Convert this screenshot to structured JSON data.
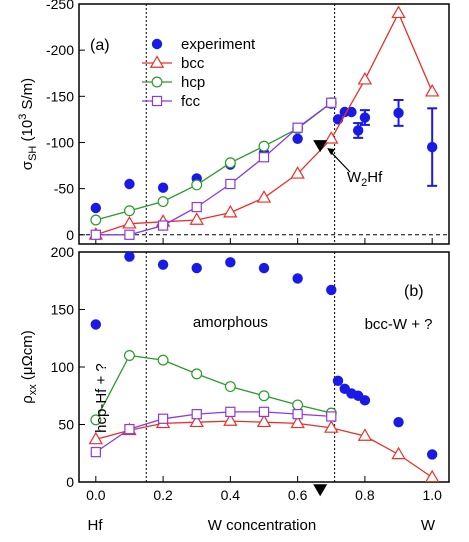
{
  "chart_data": [
    {
      "type": "line",
      "panel_label": "(a)",
      "ylabel": "σSH (10³ S/m)",
      "ylabel_main": "σ",
      "ylabel_sub": "SH",
      "ylabel_unit": " (10",
      "ylabel_exp": "3",
      "ylabel_tail": " S/m)",
      "ylim": [
        -250,
        10
      ],
      "y_inverted": true,
      "yticks": [
        0,
        -50,
        -100,
        -150,
        -200,
        -250
      ],
      "ytick_labels": [
        "0",
        "-50",
        "-100",
        "-150",
        "-200",
        "-250"
      ],
      "xlim": [
        -0.05,
        1.05
      ],
      "legend_position": "top-left",
      "legend": [
        "experiment",
        "bcc",
        "hcp",
        "fcc"
      ],
      "series": [
        {
          "name": "experiment",
          "marker": "filled-circle",
          "line": false,
          "color": "#1a1ae6",
          "x": [
            0.0,
            0.1,
            0.2,
            0.3,
            0.4,
            0.5,
            0.6,
            0.7,
            0.72,
            0.74,
            0.76,
            0.78,
            0.8,
            0.9,
            1.0
          ],
          "y": [
            -29,
            -55,
            -51,
            -61,
            -76,
            -89,
            -104,
            -142,
            -125,
            -133,
            -133,
            -113,
            -127,
            -132,
            -95
          ],
          "err": [
            0,
            0,
            0,
            0,
            0,
            0,
            0,
            0,
            0,
            0,
            0,
            8,
            8,
            14,
            42
          ]
        },
        {
          "name": "bcc",
          "marker": "open-triangle",
          "line": true,
          "color": "#e8302a",
          "x": [
            0.0,
            0.1,
            0.2,
            0.3,
            0.4,
            0.5,
            0.6,
            0.7,
            0.8,
            0.9,
            1.0
          ],
          "y": [
            0,
            -12,
            -14,
            -16,
            -24,
            -40,
            -66,
            -104,
            -168,
            -240,
            -155
          ]
        },
        {
          "name": "hcp",
          "marker": "open-circle",
          "line": true,
          "color": "#2a9a2a",
          "x": [
            0.0,
            0.1,
            0.2,
            0.3,
            0.4,
            0.5,
            0.6,
            0.7
          ],
          "y": [
            -16,
            -26,
            -36,
            -54,
            -78,
            -96,
            -115,
            -143
          ]
        },
        {
          "name": "fcc",
          "marker": "open-square",
          "line": true,
          "color": "#8a3ae0",
          "x": [
            0.0,
            0.1,
            0.2,
            0.3,
            0.4,
            0.5,
            0.6,
            0.7
          ],
          "y": [
            0,
            0,
            -10,
            -30,
            -55,
            -84,
            -116,
            -143
          ]
        }
      ],
      "annotations": [
        {
          "text": "W",
          "sub": "2",
          "tail": "Hf",
          "x": 0.667,
          "y": -96,
          "marker": "filled-down-triangle"
        }
      ],
      "vlines": [
        0.15,
        0.71
      ],
      "hline_dashed": 0
    },
    {
      "type": "line",
      "panel_label": "(b)",
      "ylabel": "ρxx (μΩcm)",
      "ylabel_main": "ρ",
      "ylabel_sub": "xx",
      "ylabel_unit": " (μΩcm)",
      "ylim": [
        0,
        200
      ],
      "yticks": [
        0,
        50,
        100,
        150,
        200
      ],
      "ytick_labels": [
        "0",
        "50",
        "100",
        "150",
        "200"
      ],
      "xlim": [
        -0.05,
        1.05
      ],
      "xticks": [
        0,
        0.2,
        0.4,
        0.6,
        0.8,
        1.0
      ],
      "xtick_labels": [
        "0.0",
        "0.2",
        "0.4",
        "0.6",
        "0.8",
        "1.0"
      ],
      "xlabel": "W concentration",
      "x_left_label": "Hf",
      "x_right_label": "W",
      "series": [
        {
          "name": "experiment",
          "marker": "filled-circle",
          "line": false,
          "color": "#1a1ae6",
          "x": [
            0.0,
            0.1,
            0.2,
            0.3,
            0.4,
            0.5,
            0.6,
            0.7,
            0.72,
            0.74,
            0.76,
            0.78,
            0.8,
            0.9,
            1.0
          ],
          "y": [
            137,
            196,
            189,
            186,
            191,
            186,
            177,
            167,
            88,
            81,
            77,
            75,
            71,
            52,
            24
          ]
        },
        {
          "name": "bcc",
          "marker": "open-triangle",
          "line": true,
          "color": "#e8302a",
          "x": [
            0.0,
            0.1,
            0.2,
            0.3,
            0.4,
            0.5,
            0.6,
            0.7,
            0.8,
            0.9,
            1.0
          ],
          "y": [
            37,
            45,
            51,
            52,
            53,
            52,
            51,
            47,
            40,
            24,
            4
          ]
        },
        {
          "name": "hcp",
          "marker": "open-circle",
          "line": true,
          "color": "#2a9a2a",
          "x": [
            0.0,
            0.1,
            0.2,
            0.3,
            0.4,
            0.5,
            0.6,
            0.7
          ],
          "y": [
            54,
            110,
            106,
            94,
            83,
            75,
            67,
            60
          ]
        },
        {
          "name": "fcc",
          "marker": "open-square",
          "line": true,
          "color": "#8a3ae0",
          "x": [
            0.0,
            0.1,
            0.2,
            0.3,
            0.4,
            0.5,
            0.6,
            0.7
          ],
          "y": [
            26,
            46,
            55,
            59,
            61,
            61,
            59,
            57
          ]
        }
      ],
      "annotations": [
        {
          "text": "amorphous",
          "x": 0.4,
          "y": 135
        },
        {
          "text": "bcc-W + ?",
          "x": 0.9,
          "y": 133
        },
        {
          "text": "hcp-Hf + ?",
          "x": 0.03,
          "y": 73,
          "rotate": -90
        },
        {
          "text": "",
          "x": 0.667,
          "y": -8,
          "marker": "filled-down-triangle"
        }
      ],
      "vlines": [
        0.15,
        0.71
      ]
    }
  ]
}
